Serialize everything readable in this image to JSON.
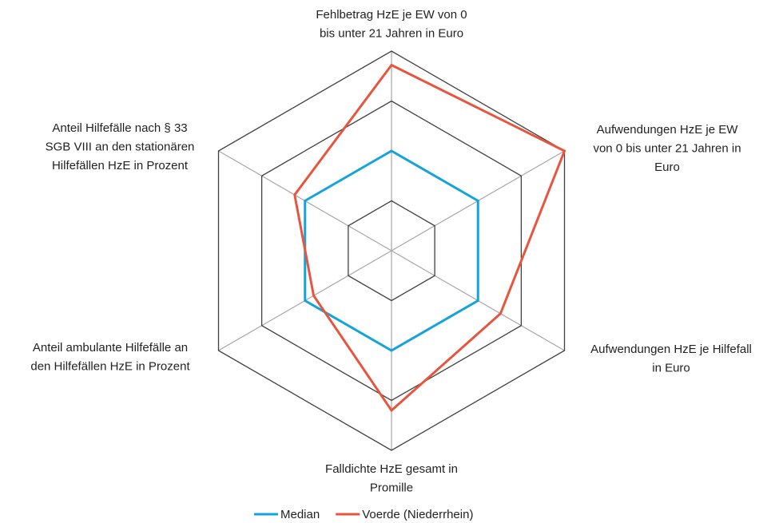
{
  "chart_data": {
    "type": "radar",
    "categories": [
      [
        "Fehlbetrag HzE je EW von 0",
        "bis unter 21 Jahren in Euro"
      ],
      [
        "Aufwendungen HzE je EW",
        "von 0 bis unter 21 Jahren in",
        "Euro"
      ],
      [
        "Aufwendungen HzE je Hilfefall",
        "in Euro"
      ],
      [
        "Falldichte HzE gesamt in",
        "Promille"
      ],
      [
        "Anteil ambulante Hilfefälle an",
        "den Hilfefällen HzE in Prozent"
      ],
      [
        "Anteil Hilfefälle nach § 33",
        "SGB VIII an den stationären",
        "Hilfefällen HzE in Prozent"
      ]
    ],
    "series": [
      {
        "name": "Median",
        "color": "#14a3da",
        "values": [
          1,
          1,
          1,
          1,
          1,
          1
        ]
      },
      {
        "name": "Voerde (Niederrhein)",
        "color": "#e8553e",
        "values": [
          1.86,
          2.0,
          1.26,
          1.6,
          0.9,
          1.12
        ]
      }
    ],
    "rlim": [
      0,
      2
    ],
    "rticks": [
      0.5,
      1,
      1.5,
      2
    ],
    "legend": "bottom"
  }
}
